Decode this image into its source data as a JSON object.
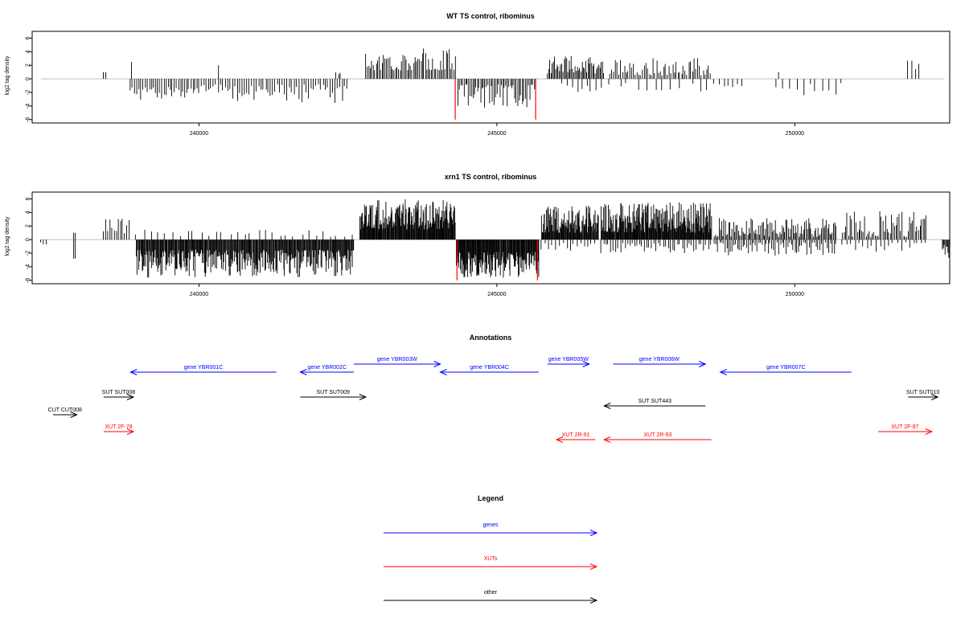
{
  "colors": {
    "gene": "#0000ff",
    "xut": "#ff0000",
    "other": "#000000",
    "highlight": "#ff0000",
    "baseline": "#bfbfbf"
  },
  "chart_data": [
    {
      "type": "bar",
      "title": "WT TS control, ribominus",
      "ylabel": "log2 tag density",
      "xlim": [
        237200,
        252600
      ],
      "ylim": [
        -6.5,
        7
      ],
      "yticks": [
        -6,
        -4,
        -2,
        0,
        2,
        4,
        6
      ],
      "xticks": [
        240000,
        245000,
        250000
      ],
      "highlight": [
        {
          "x": 244300,
          "y": -6
        },
        {
          "x": 245650,
          "y": -6
        }
      ],
      "segments": [
        {
          "from": 238400,
          "to": 238450,
          "step": 40,
          "yp": [
            1,
            1
          ],
          "yn": [
            0,
            0
          ],
          "seed": 11
        },
        {
          "from": 238850,
          "to": 240000,
          "step": 35,
          "yp": [
            0,
            0
          ],
          "yn": [
            -1.2,
            -3.2
          ],
          "seed": 12
        },
        {
          "from": 238870,
          "to": 238880,
          "step": 20,
          "yp": [
            2.5,
            2.5
          ],
          "yn": [
            0,
            0
          ],
          "seed": 13
        },
        {
          "from": 240000,
          "to": 242500,
          "step": 40,
          "yp": [
            0,
            0
          ],
          "yn": [
            -0.8,
            -3.8
          ],
          "seed": 14
        },
        {
          "from": 240330,
          "to": 240340,
          "step": 20,
          "yp": [
            2.0,
            2.0
          ],
          "yn": [
            0,
            0
          ],
          "seed": 15
        },
        {
          "from": 242300,
          "to": 242400,
          "step": 40,
          "yp": [
            0.6,
            1.2
          ],
          "yn": [
            0,
            0
          ],
          "seed": 16
        },
        {
          "from": 242800,
          "to": 244300,
          "step": 25,
          "yp": [
            1.2,
            4.5
          ],
          "yn": [
            0,
            0
          ],
          "seed": 17
        },
        {
          "from": 244350,
          "to": 245650,
          "step": 25,
          "yp": [
            0,
            0
          ],
          "yn": [
            -0.8,
            -4.4
          ],
          "seed": 18
        },
        {
          "from": 245850,
          "to": 246800,
          "step": 20,
          "yp": [
            0.8,
            3.4
          ],
          "yn": [
            0,
            0
          ],
          "seed": 19
        },
        {
          "from": 246100,
          "to": 246800,
          "step": 80,
          "yp": [
            0,
            0
          ],
          "yn": [
            -0.6,
            -2.0
          ],
          "seed": 20
        },
        {
          "from": 246900,
          "to": 248600,
          "step": 30,
          "yp": [
            0.5,
            3.2
          ],
          "yn": [
            0,
            0
          ],
          "seed": 21
        },
        {
          "from": 246900,
          "to": 248600,
          "step": 150,
          "yp": [
            0,
            0
          ],
          "yn": [
            -0.6,
            -2.0
          ],
          "seed": 22
        },
        {
          "from": 248650,
          "to": 249200,
          "step": 80,
          "yp": [
            0,
            0
          ],
          "yn": [
            -0.5,
            -1.3
          ],
          "seed": 23
        },
        {
          "from": 249700,
          "to": 250900,
          "step": 110,
          "yp": [
            0,
            0
          ],
          "yn": [
            -0.6,
            -2.5
          ],
          "seed": 24
        },
        {
          "from": 249730,
          "to": 249740,
          "step": 20,
          "yp": [
            1.0,
            1.0
          ],
          "yn": [
            0,
            0
          ],
          "seed": 25
        },
        {
          "from": 251900,
          "to": 252100,
          "step": 60,
          "yp": [
            1.4,
            3.8
          ],
          "yn": [
            0,
            0
          ],
          "seed": 26
        }
      ]
    },
    {
      "type": "bar",
      "title": "xrn1 TS control, ribominus",
      "ylabel": "log2 tag density",
      "xlim": [
        237200,
        252600
      ],
      "ylim": [
        -6.5,
        7
      ],
      "yticks": [
        -6,
        -4,
        -2,
        0,
        2,
        4,
        6
      ],
      "xticks": [
        240000,
        245000,
        250000
      ],
      "highlight": [
        {
          "x": 244330,
          "y": -6
        },
        {
          "x": 245680,
          "y": -6
        }
      ],
      "segments": [
        {
          "from": 237350,
          "to": 237450,
          "step": 50,
          "yp": [
            0,
            0
          ],
          "yn": [
            -0.4,
            -0.8
          ],
          "seed": 31
        },
        {
          "from": 237900,
          "to": 237920,
          "step": 20,
          "yp": [
            1.0,
            1.0
          ],
          "yn": [
            -2.8,
            -2.8
          ],
          "seed": 32
        },
        {
          "from": 238400,
          "to": 238850,
          "step": 35,
          "yp": [
            0.8,
            3.4
          ],
          "yn": [
            0,
            0
          ],
          "seed": 33
        },
        {
          "from": 238950,
          "to": 242600,
          "step": 12,
          "yp": [
            0,
            0
          ],
          "yn": [
            -1.5,
            -5.6
          ],
          "seed": 34
        },
        {
          "from": 238950,
          "to": 242600,
          "step": 120,
          "yp": [
            0.4,
            1.5
          ],
          "yn": [
            0,
            0
          ],
          "seed": 35
        },
        {
          "from": 242700,
          "to": 244300,
          "step": 10,
          "yp": [
            1.5,
            6.0
          ],
          "yn": [
            0,
            0
          ],
          "seed": 36
        },
        {
          "from": 244320,
          "to": 245700,
          "step": 10,
          "yp": [
            0,
            0
          ],
          "yn": [
            -1.8,
            -5.6
          ],
          "seed": 37
        },
        {
          "from": 245750,
          "to": 246700,
          "step": 10,
          "yp": [
            1.0,
            5.0
          ],
          "yn": [
            0,
            0
          ],
          "seed": 38
        },
        {
          "from": 245750,
          "to": 246700,
          "step": 60,
          "yp": [
            0,
            0
          ],
          "yn": [
            -0.5,
            -1.8
          ],
          "seed": 39
        },
        {
          "from": 246750,
          "to": 248600,
          "step": 10,
          "yp": [
            1.0,
            5.5
          ],
          "yn": [
            0,
            0
          ],
          "seed": 40
        },
        {
          "from": 246750,
          "to": 248600,
          "step": 40,
          "yp": [
            0,
            0
          ],
          "yn": [
            -0.5,
            -2.0
          ],
          "seed": 41
        },
        {
          "from": 248650,
          "to": 250700,
          "step": 20,
          "yp": [
            0.4,
            3.2
          ],
          "yn": [
            0,
            0
          ],
          "seed": 42
        },
        {
          "from": 248650,
          "to": 250700,
          "step": 30,
          "yp": [
            0,
            0
          ],
          "yn": [
            -0.4,
            -2.4
          ],
          "seed": 43
        },
        {
          "from": 250800,
          "to": 252200,
          "step": 25,
          "yp": [
            0.4,
            4.2
          ],
          "yn": [
            0,
            0
          ],
          "seed": 44
        },
        {
          "from": 250800,
          "to": 252200,
          "step": 70,
          "yp": [
            0,
            0
          ],
          "yn": [
            -0.4,
            -1.8
          ],
          "seed": 45
        },
        {
          "from": 252480,
          "to": 252600,
          "step": 15,
          "yp": [
            0,
            0
          ],
          "yn": [
            -0.8,
            -2.8
          ],
          "seed": 46
        }
      ]
    },
    {
      "type": "table",
      "title": "Annotations",
      "xlim": [
        237200,
        252600
      ],
      "features": [
        {
          "label": "gene YBR001C",
          "kind": "gene",
          "start": 238850,
          "end": 241300,
          "strand": "-",
          "row": 0
        },
        {
          "label": "gene YBR002C",
          "kind": "gene",
          "start": 241700,
          "end": 242600,
          "strand": "-",
          "row": 0
        },
        {
          "label": "gene YBR003W",
          "kind": "gene",
          "start": 242600,
          "end": 244050,
          "strand": "+",
          "row": 1
        },
        {
          "label": "gene YBR004C",
          "kind": "gene",
          "start": 244050,
          "end": 245700,
          "strand": "-",
          "row": 0
        },
        {
          "label": "gene YBR005W",
          "kind": "gene",
          "start": 245850,
          "end": 246550,
          "strand": "+",
          "row": 1
        },
        {
          "label": "gene YBR006W",
          "kind": "gene",
          "start": 246950,
          "end": 248500,
          "strand": "+",
          "row": 1
        },
        {
          "label": "gene YBR007C",
          "kind": "gene",
          "start": 248750,
          "end": 250950,
          "strand": "-",
          "row": 0
        },
        {
          "label": "SUT SUT008",
          "kind": "other",
          "start": 238400,
          "end": 238900,
          "strand": "+",
          "row": 2
        },
        {
          "label": "SUT SUT009",
          "kind": "other",
          "start": 241700,
          "end": 242800,
          "strand": "+",
          "row": 2
        },
        {
          "label": "SUT SUT443",
          "kind": "other",
          "start": 246800,
          "end": 248500,
          "strand": "-",
          "row": 3
        },
        {
          "label": "SUT SUT010",
          "kind": "other",
          "start": 251900,
          "end": 252400,
          "strand": "+",
          "row": 2
        },
        {
          "label": "CUT CUT008",
          "kind": "other",
          "start": 237550,
          "end": 237950,
          "strand": "+",
          "row": 4
        },
        {
          "label": "XUT 2F-78",
          "kind": "xut",
          "start": 238400,
          "end": 238900,
          "strand": "+",
          "row": 5
        },
        {
          "label": "XUT 2R-91",
          "kind": "xut",
          "start": 246000,
          "end": 246650,
          "strand": "-",
          "row": 6
        },
        {
          "label": "XUT 2R-93",
          "kind": "xut",
          "start": 246800,
          "end": 248600,
          "strand": "-",
          "row": 6
        },
        {
          "label": "XUT 2F-87",
          "kind": "xut",
          "start": 251400,
          "end": 252300,
          "strand": "+",
          "row": 5
        }
      ]
    }
  ],
  "legend": {
    "title": "Legend",
    "entries": [
      {
        "label": "genes",
        "kind": "gene"
      },
      {
        "label": "XUTs",
        "kind": "xut"
      },
      {
        "label": "other",
        "kind": "other"
      }
    ]
  }
}
